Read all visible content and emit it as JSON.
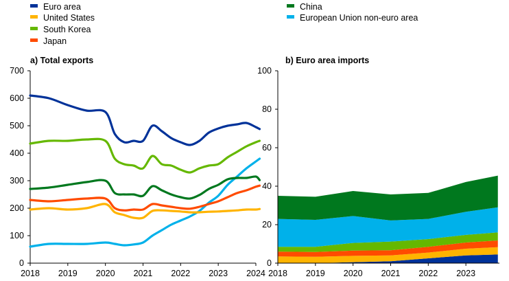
{
  "legend": [
    {
      "label": "Euro area",
      "color": "#003299"
    },
    {
      "label": "United States",
      "color": "#FFB400"
    },
    {
      "label": "South Korea",
      "color": "#65B800"
    },
    {
      "label": "Japan",
      "color": "#FF4B00"
    },
    {
      "label": "China",
      "color": "#00781E"
    },
    {
      "label": "European Union non-euro area",
      "color": "#00B1EA"
    }
  ],
  "chart_data": [
    {
      "type": "line",
      "title": "a) Total exports",
      "xlabel": "",
      "ylabel": "",
      "ylim": [
        0,
        700
      ],
      "yticks": [
        0,
        100,
        200,
        300,
        400,
        500,
        600,
        700
      ],
      "xlim": [
        2018,
        2024
      ],
      "xticks": [
        "2018",
        "2019",
        "2020",
        "2021",
        "2022",
        "2023",
        "2024"
      ],
      "grid": false,
      "x": [
        2018.0,
        2018.5,
        2019.0,
        2019.5,
        2020.0,
        2020.25,
        2020.5,
        2020.75,
        2021.0,
        2021.25,
        2021.5,
        2021.75,
        2022.0,
        2022.25,
        2022.5,
        2022.75,
        2023.0,
        2023.25,
        2023.5,
        2023.75,
        2024.0,
        2024.1
      ],
      "series": [
        {
          "name": "Euro area",
          "color": "#003299",
          "values": [
            610,
            600,
            575,
            555,
            550,
            470,
            440,
            445,
            445,
            500,
            480,
            455,
            440,
            430,
            445,
            475,
            490,
            500,
            505,
            510,
            495,
            488
          ]
        },
        {
          "name": "United States",
          "color": "#FFB400",
          "values": [
            195,
            200,
            195,
            200,
            215,
            185,
            175,
            165,
            165,
            190,
            192,
            190,
            188,
            185,
            185,
            187,
            188,
            190,
            192,
            195,
            195,
            197
          ]
        },
        {
          "name": "South Korea",
          "color": "#65B800",
          "values": [
            435,
            445,
            445,
            450,
            445,
            380,
            360,
            355,
            345,
            390,
            360,
            355,
            340,
            330,
            345,
            355,
            360,
            385,
            405,
            425,
            440,
            445
          ]
        },
        {
          "name": "Japan",
          "color": "#FF4B00",
          "values": [
            230,
            225,
            230,
            235,
            235,
            200,
            192,
            195,
            195,
            215,
            210,
            205,
            200,
            198,
            205,
            215,
            225,
            240,
            255,
            265,
            278,
            282
          ]
        },
        {
          "name": "China",
          "color": "#00781E",
          "values": [
            270,
            275,
            285,
            295,
            300,
            255,
            250,
            250,
            245,
            280,
            265,
            250,
            240,
            235,
            248,
            270,
            285,
            305,
            310,
            310,
            315,
            302
          ]
        },
        {
          "name": "European Union non-euro area",
          "color": "#00B1EA",
          "values": [
            60,
            70,
            70,
            70,
            75,
            70,
            65,
            68,
            75,
            100,
            120,
            140,
            155,
            170,
            190,
            220,
            245,
            285,
            315,
            345,
            370,
            380
          ]
        }
      ]
    },
    {
      "type": "area",
      "title": "b) Euro area imports",
      "xlabel": "",
      "ylabel": "",
      "stacked": true,
      "ylim": [
        0,
        100
      ],
      "yticks": [
        0,
        20,
        40,
        60,
        80,
        100
      ],
      "xlim": [
        2018,
        2023.85
      ],
      "xticks": [
        "2018",
        "2019",
        "2020",
        "2021",
        "2022",
        "2023"
      ],
      "grid": false,
      "x": [
        2018.0,
        2019.0,
        2020.0,
        2021.0,
        2022.0,
        2023.0,
        2023.85
      ],
      "series": [
        {
          "name": "Euro area",
          "color": "#003299",
          "values": [
            0.0,
            0.0,
            0.5,
            1.0,
            2.5,
            4.0,
            4.5
          ]
        },
        {
          "name": "United States",
          "color": "#FFB400",
          "values": [
            3.5,
            3.3,
            3.3,
            3.0,
            3.0,
            3.5,
            3.8
          ]
        },
        {
          "name": "Japan",
          "color": "#FF4B00",
          "values": [
            2.5,
            2.5,
            2.7,
            2.7,
            3.0,
            3.2,
            3.5
          ]
        },
        {
          "name": "South Korea",
          "color": "#65B800",
          "values": [
            2.5,
            2.7,
            4.0,
            4.5,
            4.0,
            4.0,
            4.2
          ]
        },
        {
          "name": "European Union non-euro area",
          "color": "#00B1EA",
          "values": [
            14.5,
            14.0,
            14.0,
            11.0,
            10.5,
            12.0,
            13.0
          ]
        },
        {
          "name": "China",
          "color": "#00781E",
          "values": [
            12.0,
            12.0,
            13.0,
            13.5,
            13.5,
            15.5,
            16.5
          ]
        }
      ]
    }
  ]
}
